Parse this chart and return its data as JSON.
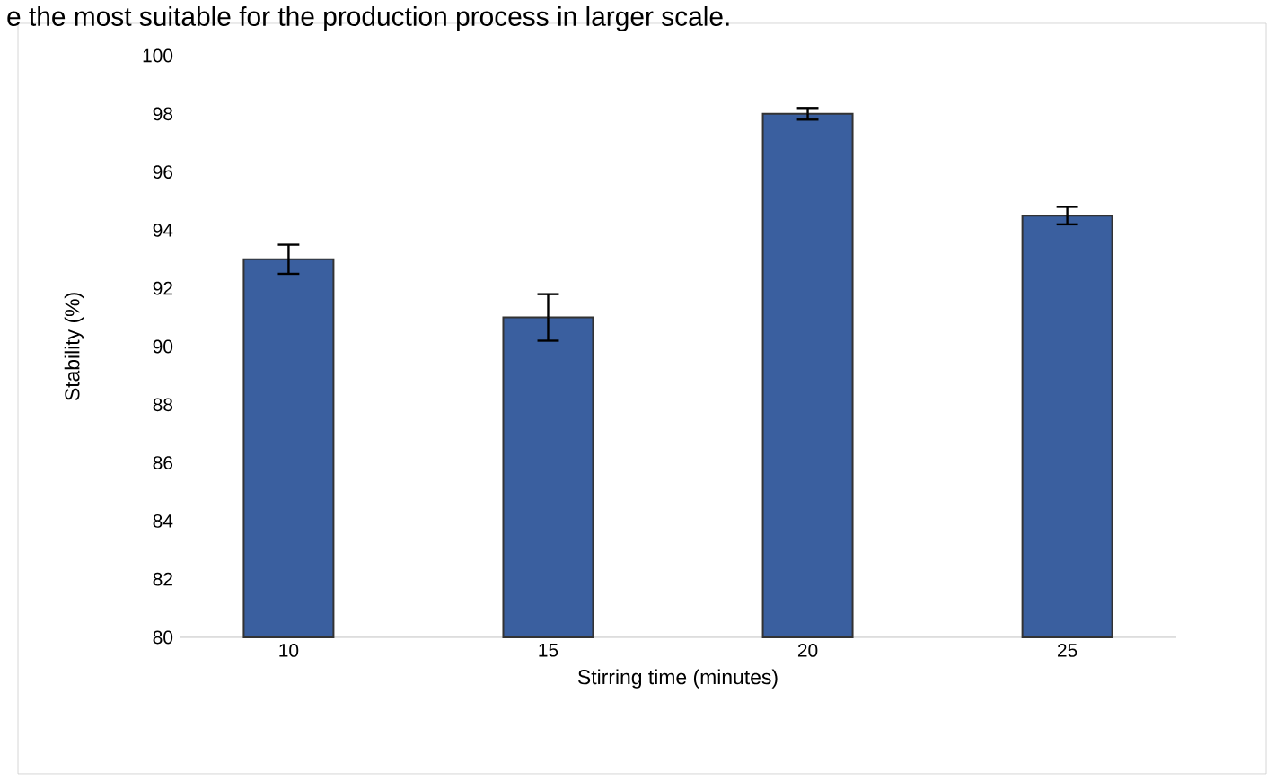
{
  "chart_data": {
    "type": "bar",
    "categories": [
      "10",
      "15",
      "20",
      "25"
    ],
    "values": [
      93.0,
      91.0,
      98.0,
      94.5
    ],
    "errors": [
      0.5,
      0.8,
      0.2,
      0.3
    ],
    "color": "#3a5f9f",
    "xlabel": "Stirring time (minutes)",
    "ylabel": "Stability (%)",
    "ylim": [
      80,
      100
    ],
    "yticks": [
      80,
      82,
      84,
      86,
      88,
      90,
      92,
      94,
      96,
      98,
      100
    ],
    "annotations": [
      "e the most suitable for the production process in larger scale."
    ]
  }
}
